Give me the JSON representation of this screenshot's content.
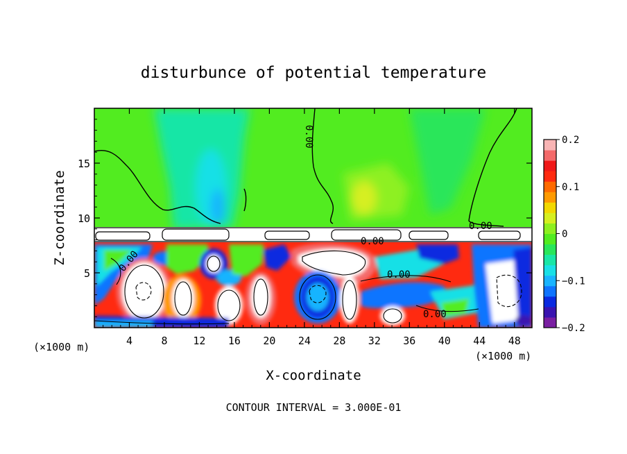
{
  "chart_data": {
    "type": "heatmap",
    "title": "disturbunce of potential temperature",
    "xlabel": "X-coordinate",
    "ylabel": "Z-coordinate",
    "x_unit": "(×1000 m)",
    "xlim": [
      0,
      50
    ],
    "ylim": [
      0,
      20
    ],
    "x_ticks": [
      "4",
      "8",
      "12",
      "16",
      "20",
      "24",
      "28",
      "32",
      "36",
      "40",
      "44",
      "48"
    ],
    "x_tick_values": [
      4,
      8,
      12,
      16,
      20,
      24,
      28,
      32,
      36,
      40,
      44,
      48
    ],
    "y_ticks": [
      "5",
      "10",
      "15"
    ],
    "y_tick_values": [
      5,
      10,
      15
    ],
    "colorbar": {
      "range": [
        -0.2,
        0.2
      ],
      "tick_labels": [
        "0.2",
        "0.1",
        "0",
        "−0.1",
        "−0.2"
      ],
      "tick_values": [
        0.2,
        0.1,
        0,
        -0.1,
        -0.2
      ],
      "colors": [
        "#7a1fa2",
        "#3a14b0",
        "#0a2ae0",
        "#0f74ff",
        "#19b4ff",
        "#19e0e6",
        "#19e6a6",
        "#29e65a",
        "#52ec20",
        "#8ef020",
        "#d6ef20",
        "#f2d800",
        "#ff9a00",
        "#ff6a00",
        "#ff2a10",
        "#f01818",
        "#f46a6a",
        "#f8b4b4"
      ]
    },
    "contour_labels": [
      "0.00",
      "0.00",
      "0.00",
      "0.00",
      "0.00",
      "0.00"
    ],
    "contour_interval": "CONTOUR INTERVAL = 3.000E-01",
    "background_color": "#52ec20"
  }
}
